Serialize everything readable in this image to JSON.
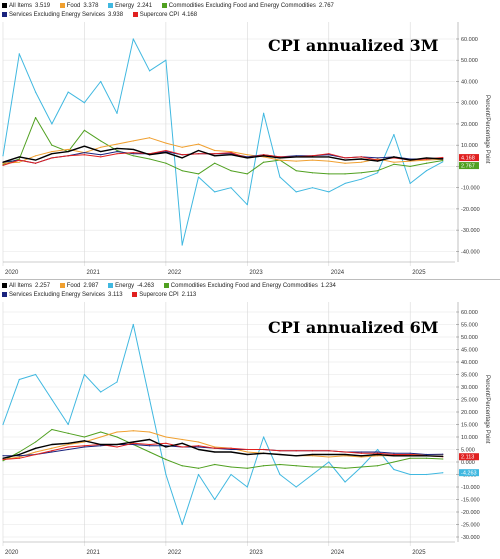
{
  "charts": [
    {
      "title": "CPI annualized 3M",
      "ylabel": "Percent/Percentage Point",
      "legend": [
        {
          "label": "All Items",
          "value": "3.519",
          "color": "#000000"
        },
        {
          "label": "Food",
          "value": "3.378",
          "color": "#f0a030"
        },
        {
          "label": "Energy",
          "value": "2.241",
          "color": "#40b8e0"
        },
        {
          "label": "Commodities Excluding Food and Energy Commodities",
          "value": "2.767",
          "color": "#50a020"
        },
        {
          "label": "Services Excluding Energy Services",
          "value": "3.938",
          "color": "#1a237e"
        },
        {
          "label": "Supercore CPI",
          "value": "4.168",
          "color": "#e02020"
        }
      ],
      "last_value_tags": [
        {
          "value": "4.168",
          "color": "#e02020"
        },
        {
          "value": "2.767",
          "color": "#50a020"
        }
      ]
    },
    {
      "title": "CPI annualized 6M",
      "ylabel": "Percent/Percentage Point",
      "legend": [
        {
          "label": "All Items",
          "value": "2.257",
          "color": "#000000"
        },
        {
          "label": "Food",
          "value": "2.987",
          "color": "#f0a030"
        },
        {
          "label": "Energy",
          "value": "-4.263",
          "color": "#40b8e0"
        },
        {
          "label": "Commodities Excluding Food and Energy Commodities",
          "value": "1.234",
          "color": "#50a020"
        },
        {
          "label": "Services Excluding Energy Services",
          "value": "3.113",
          "color": "#1a237e"
        },
        {
          "label": "Supercore CPI",
          "value": "2.113",
          "color": "#e02020"
        }
      ],
      "last_value_tags": [
        {
          "value": "2.113",
          "color": "#e02020"
        },
        {
          "value": "-4.263",
          "color": "#40b8e0"
        }
      ]
    }
  ],
  "chart_data": [
    {
      "type": "line",
      "title": "CPI annualized 3M",
      "xlabel": "",
      "ylabel": "Percent/Percentage Point",
      "x": [
        2020.0,
        2020.2,
        2020.4,
        2020.6,
        2020.8,
        2021.0,
        2021.2,
        2021.4,
        2021.6,
        2021.8,
        2022.0,
        2022.2,
        2022.4,
        2022.6,
        2022.8,
        2023.0,
        2023.2,
        2023.4,
        2023.6,
        2023.8,
        2024.0,
        2024.2,
        2024.4,
        2024.6,
        2024.8,
        2025.0,
        2025.2,
        2025.4
      ],
      "x_ticks": [
        "2020",
        "2021",
        "2022",
        "2023",
        "2024",
        "2025"
      ],
      "x_range": [
        2020.0,
        2025.55
      ],
      "y_ticks": [
        60,
        50,
        40,
        30,
        20,
        10,
        0,
        -10,
        -20,
        -30,
        -40
      ],
      "y_tick_labels": [
        "60.000",
        "50.000",
        "40.000",
        "30.000",
        "20.000",
        "10.000",
        "0.000",
        "-10.000",
        "-20.000",
        "-30.000",
        "-40.000"
      ],
      "ylim": [
        -45,
        68
      ],
      "grid": true,
      "series": [
        {
          "name": "All Items",
          "values": [
            2.0,
            4.5,
            3.0,
            6.0,
            7.0,
            9.5,
            7.0,
            8.5,
            8.0,
            5.5,
            6.5,
            4.0,
            7.5,
            5.0,
            5.5,
            4.0,
            5.0,
            4.0,
            4.5,
            4.5,
            4.5,
            3.0,
            3.5,
            2.5,
            4.5,
            3.0,
            4.0,
            3.5
          ]
        },
        {
          "name": "Food",
          "values": [
            1.5,
            2.0,
            5.0,
            7.0,
            8.0,
            6.5,
            9.0,
            10.5,
            12.0,
            13.5,
            11.0,
            9.0,
            10.5,
            7.5,
            7.0,
            5.5,
            4.5,
            3.0,
            2.5,
            3.0,
            2.5,
            1.5,
            2.0,
            3.5,
            2.0,
            2.5,
            3.0,
            3.4
          ]
        },
        {
          "name": "Energy",
          "values": [
            5.0,
            53.0,
            35.0,
            20.0,
            35.0,
            30.0,
            40.0,
            25.0,
            60.0,
            45.0,
            50.0,
            -37.0,
            -5.0,
            -12.0,
            -10.0,
            -18.0,
            25.0,
            -5.0,
            -12.0,
            -10.0,
            -12.0,
            -8.0,
            -6.0,
            -3.0,
            15.0,
            -8.0,
            -2.0,
            2.2
          ]
        },
        {
          "name": "Commodities Excluding Food and Energy Commodities",
          "values": [
            1.0,
            3.5,
            23.0,
            10.0,
            7.0,
            17.0,
            12.0,
            7.5,
            5.0,
            3.5,
            1.5,
            -2.0,
            -3.5,
            1.5,
            -2.0,
            -3.5,
            2.0,
            3.0,
            -2.0,
            -3.0,
            -3.5,
            -3.5,
            -3.0,
            -2.0,
            1.0,
            0.0,
            1.5,
            2.8
          ]
        },
        {
          "name": "Services Excluding Energy Services",
          "values": [
            2.0,
            3.0,
            1.5,
            4.0,
            5.0,
            6.5,
            5.5,
            7.0,
            6.0,
            6.0,
            7.0,
            5.5,
            6.0,
            6.0,
            6.0,
            4.5,
            5.5,
            4.5,
            5.0,
            5.0,
            5.5,
            4.0,
            4.5,
            4.0,
            4.5,
            3.5,
            3.5,
            3.9
          ]
        },
        {
          "name": "Supercore CPI",
          "values": [
            0.5,
            3.0,
            1.5,
            4.0,
            5.0,
            5.5,
            4.5,
            6.0,
            6.5,
            6.0,
            7.5,
            5.5,
            6.0,
            6.0,
            6.5,
            4.0,
            5.5,
            4.5,
            4.5,
            5.0,
            6.0,
            4.0,
            4.5,
            3.0,
            4.0,
            3.0,
            3.5,
            4.2
          ]
        }
      ]
    },
    {
      "type": "line",
      "title": "CPI annualized 6M",
      "xlabel": "",
      "ylabel": "Percent/Percentage Point",
      "x": [
        2020.0,
        2020.2,
        2020.4,
        2020.6,
        2020.8,
        2021.0,
        2021.2,
        2021.4,
        2021.6,
        2021.8,
        2022.0,
        2022.2,
        2022.4,
        2022.6,
        2022.8,
        2023.0,
        2023.2,
        2023.4,
        2023.6,
        2023.8,
        2024.0,
        2024.2,
        2024.4,
        2024.6,
        2024.8,
        2025.0,
        2025.2,
        2025.4
      ],
      "x_ticks": [
        "2020",
        "2021",
        "2022",
        "2023",
        "2024",
        "2025"
      ],
      "x_range": [
        2020.0,
        2025.55
      ],
      "y_ticks": [
        60,
        55,
        50,
        45,
        40,
        35,
        30,
        25,
        20,
        15,
        10,
        5,
        0,
        -5,
        -10,
        -15,
        -20,
        -25,
        -30
      ],
      "y_tick_labels": [
        "60.000",
        "55.000",
        "50.000",
        "45.000",
        "40.000",
        "35.000",
        "30.000",
        "25.000",
        "20.000",
        "15.000",
        "10.000",
        "5.000",
        "0.000",
        "-5.000",
        "-10.000",
        "-15.000",
        "-20.000",
        "-25.000",
        "-30.000"
      ],
      "ylim": [
        -32,
        64
      ],
      "grid": true,
      "series": [
        {
          "name": "All Items",
          "values": [
            1.5,
            3.0,
            5.5,
            7.0,
            7.5,
            8.5,
            7.0,
            7.0,
            8.0,
            9.0,
            6.0,
            7.5,
            5.0,
            4.0,
            4.0,
            3.0,
            3.5,
            3.0,
            2.5,
            3.0,
            3.0,
            3.0,
            2.5,
            3.0,
            2.5,
            2.5,
            2.5,
            2.3
          ]
        },
        {
          "name": "Food",
          "values": [
            1.0,
            2.0,
            4.0,
            5.5,
            7.0,
            8.0,
            10.0,
            12.0,
            12.5,
            12.0,
            10.0,
            9.0,
            8.0,
            6.0,
            5.5,
            4.0,
            3.5,
            3.0,
            2.5,
            2.5,
            2.0,
            2.5,
            2.0,
            2.5,
            2.5,
            3.0,
            3.0,
            3.0
          ]
        },
        {
          "name": "Energy",
          "values": [
            15.0,
            33.0,
            35.0,
            25.0,
            15.0,
            35.0,
            28.0,
            32.0,
            55.0,
            25.0,
            -5.0,
            -25.0,
            -5.0,
            -15.0,
            -5.0,
            -10.0,
            10.0,
            -5.0,
            -10.0,
            -5.0,
            0.0,
            -8.0,
            -2.0,
            5.0,
            -3.0,
            -5.0,
            -5.0,
            -4.3
          ]
        },
        {
          "name": "Commodities Excluding Food and Energy Commodities",
          "values": [
            0.5,
            4.0,
            8.0,
            13.0,
            11.5,
            10.0,
            12.0,
            10.0,
            7.0,
            4.0,
            1.0,
            -1.5,
            -2.5,
            -1.0,
            -2.0,
            -2.5,
            -1.5,
            -1.0,
            -1.5,
            -2.0,
            -2.0,
            -2.5,
            -2.0,
            -1.5,
            0.0,
            1.5,
            1.5,
            1.2
          ]
        },
        {
          "name": "Services Excluding Energy Services",
          "values": [
            2.5,
            2.5,
            3.0,
            4.0,
            5.0,
            6.0,
            6.5,
            7.0,
            7.0,
            6.5,
            6.5,
            6.0,
            6.0,
            5.5,
            5.0,
            5.0,
            5.0,
            4.5,
            4.5,
            4.5,
            4.5,
            4.0,
            4.0,
            4.0,
            3.5,
            3.5,
            3.0,
            3.1
          ]
        },
        {
          "name": "Supercore CPI",
          "values": [
            1.0,
            1.5,
            3.0,
            4.5,
            6.0,
            6.5,
            7.0,
            6.0,
            7.5,
            7.0,
            7.5,
            6.0,
            6.5,
            5.5,
            5.5,
            5.0,
            5.0,
            4.5,
            4.5,
            4.5,
            4.5,
            4.0,
            3.5,
            3.5,
            3.0,
            3.0,
            2.5,
            2.1
          ]
        }
      ]
    }
  ]
}
